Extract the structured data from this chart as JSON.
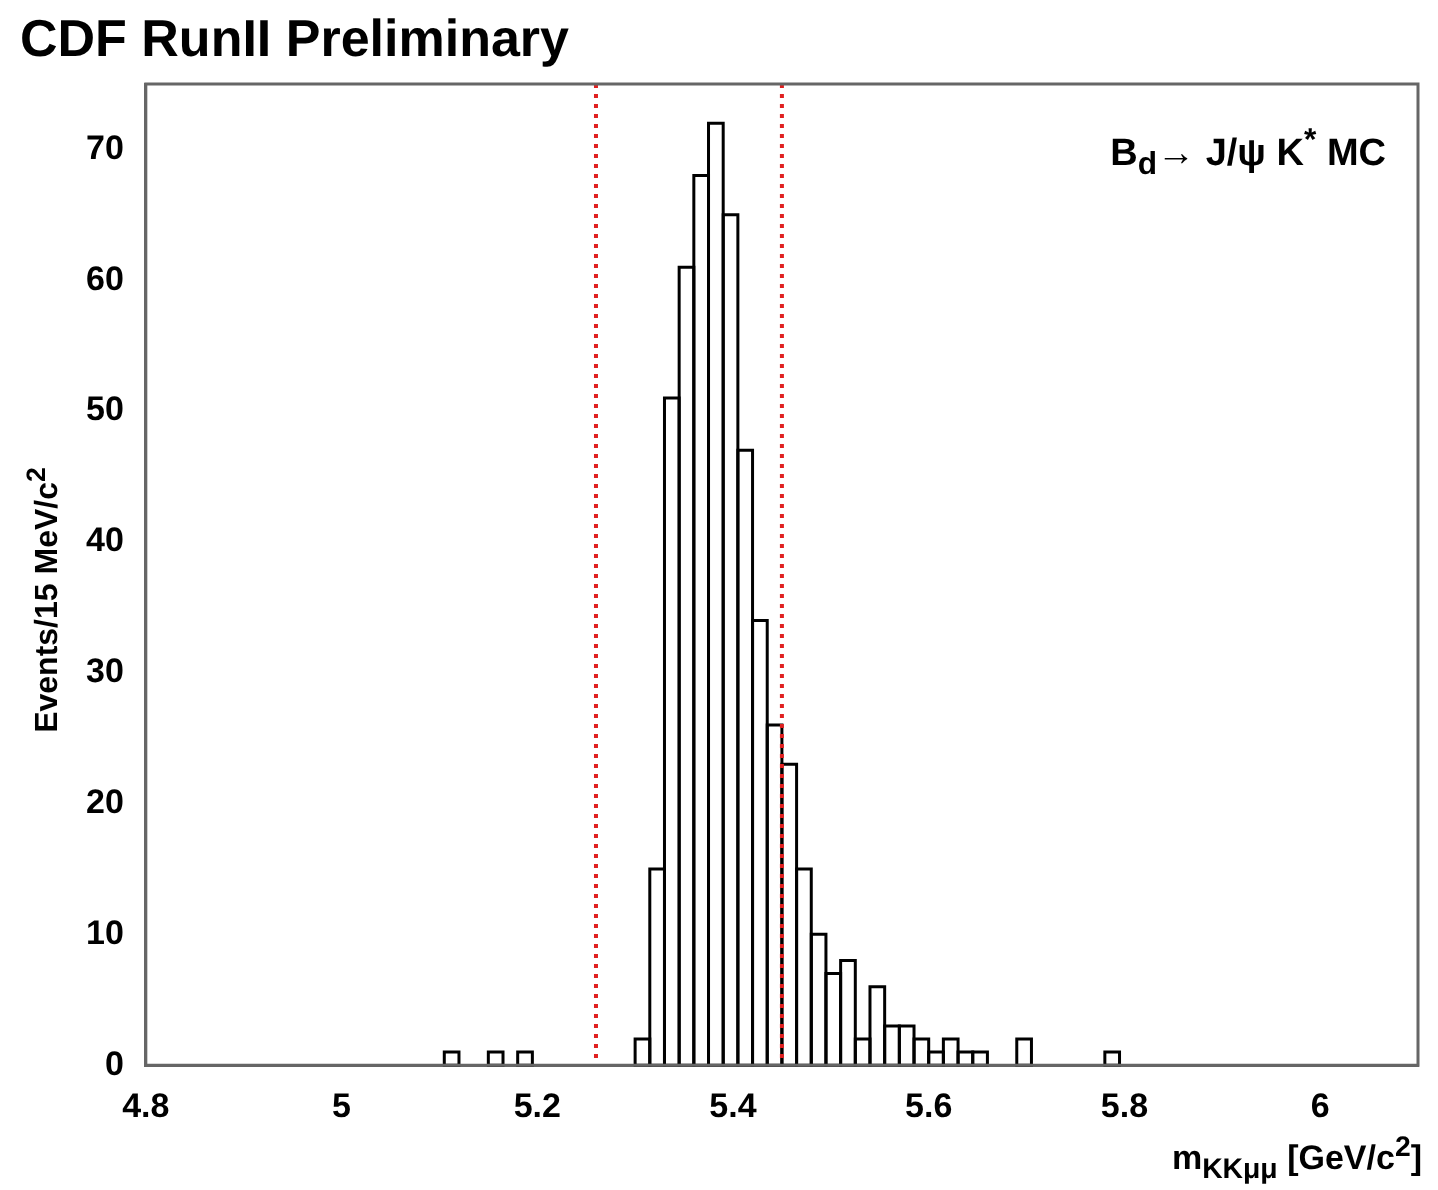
{
  "chart_data": {
    "type": "histogram",
    "title": "CDF RunII Preliminary",
    "xlabel": "m$_{KKμμ}$ [GeV/c$^{2}$]",
    "ylabel": "Events/15 MeV/c$^{2}$",
    "annotations": [
      "B$_{d}$→ J/ψ K$^{*}$ MC"
    ],
    "bins": [
      5.09,
      5.105,
      5.12,
      5.135,
      5.15,
      5.165,
      5.18,
      5.195,
      5.21,
      5.225,
      5.24,
      5.255,
      5.27,
      5.285,
      5.3,
      5.315,
      5.33,
      5.345,
      5.36,
      5.375,
      5.39,
      5.405,
      5.42,
      5.435,
      5.45,
      5.465,
      5.48,
      5.495,
      5.51,
      5.525,
      5.54,
      5.555,
      5.57,
      5.585,
      5.6,
      5.615,
      5.63,
      5.645,
      5.66,
      5.675,
      5.69,
      5.705,
      5.72,
      5.735,
      5.75,
      5.765,
      5.78,
      5.795,
      5.81
    ],
    "values": [
      0,
      1,
      0,
      0,
      1,
      0,
      1,
      0,
      0,
      0,
      0,
      0,
      0,
      0,
      2,
      15,
      51,
      61,
      68,
      72,
      65,
      47,
      34,
      26,
      23,
      15,
      10,
      7,
      8,
      2,
      6,
      3,
      3,
      2,
      1,
      2,
      1,
      1,
      0,
      0,
      2,
      0,
      0,
      0,
      0,
      0,
      1,
      0
    ],
    "color": "#000000",
    "xlim": [
      4.8,
      6.1
    ],
    "xticks": [
      {
        "value": 4.8,
        "label": "4.8"
      },
      5,
      {
        "value": 5.2,
        "label": "5.2"
      },
      {
        "value": 5.4,
        "label": "5.4"
      },
      {
        "value": 5.6,
        "label": "5.6"
      },
      {
        "value": 5.8,
        "label": "5.8"
      },
      6
    ],
    "ylim": [
      0,
      75
    ],
    "yticks": [
      0,
      10,
      20,
      30,
      40,
      50,
      60,
      70
    ],
    "ref_lines": [
      {
        "axis": "x",
        "value": 5.26,
        "color": "#e02020",
        "line_style": "dotted"
      },
      {
        "axis": "x",
        "value": 5.45,
        "color": "#e02020",
        "line_style": "dotted"
      }
    ],
    "grid": false,
    "legend": false
  }
}
